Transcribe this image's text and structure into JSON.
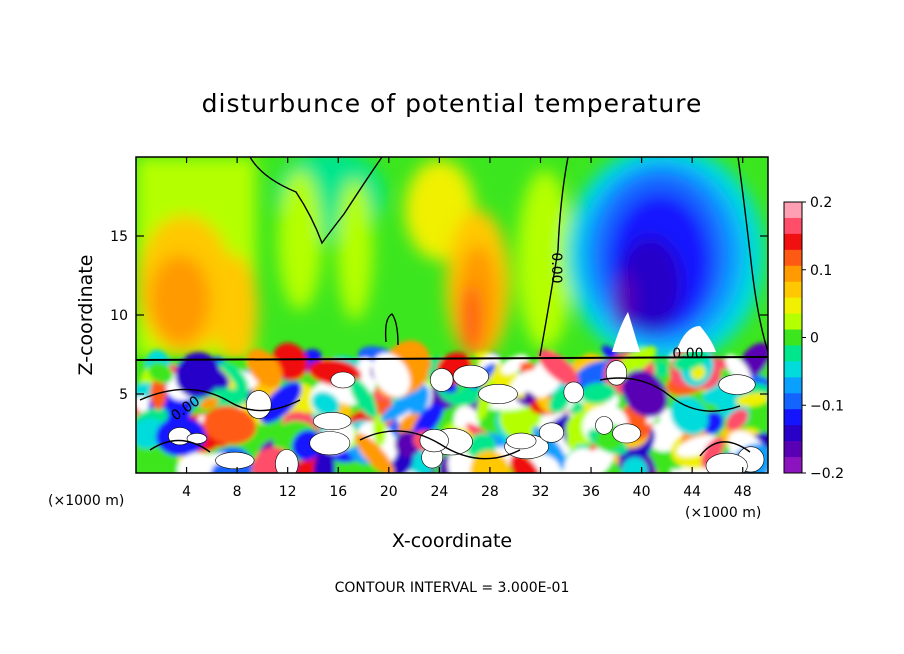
{
  "chart_data": {
    "type": "heatmap",
    "title": "disturbunce of potential temperature",
    "xlabel": "X-coordinate",
    "ylabel": "Z-coordinate",
    "x_unit": "(×1000 m)",
    "x_unit_right": "(×1000 m)",
    "xlim": [
      0,
      50
    ],
    "ylim": [
      0,
      20
    ],
    "x_ticks": [
      4,
      8,
      12,
      16,
      20,
      24,
      28,
      32,
      36,
      40,
      44,
      48
    ],
    "y_ticks": [
      5,
      10,
      15
    ],
    "colorbar": {
      "min": -0.2,
      "max": 0.2,
      "tick_values": [
        0.2,
        0.1,
        0,
        -0.1,
        -0.2
      ],
      "tick_labels": [
        "0.2",
        "0.1",
        "0",
        "−0.1",
        "−0.2"
      ],
      "colors": [
        "#ff9fb4",
        "#ff4d6a",
        "#f01010",
        "#ff5a14",
        "#ff9a00",
        "#ffc800",
        "#f0f000",
        "#b4ff00",
        "#3ce61e",
        "#00e68c",
        "#00dcdc",
        "#0aa0ff",
        "#1464ff",
        "#1414ff",
        "#2800c8",
        "#5a00b4",
        "#8c14be"
      ]
    },
    "contour_label": "0.00",
    "footer": "CONTOUR INTERVAL = 3.000E-01"
  }
}
